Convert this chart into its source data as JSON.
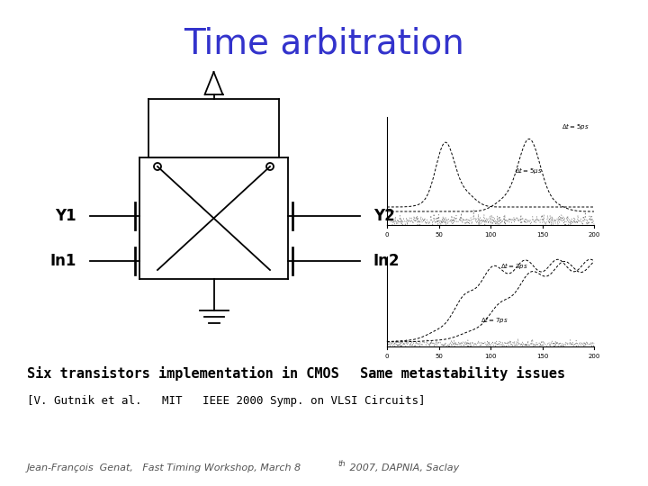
{
  "title": "Time arbitration",
  "title_color": "#3333cc",
  "title_fontsize": 28,
  "bg_color": "#ffffff",
  "label_y1": "Y1",
  "label_y2": "Y2",
  "label_in1": "In1",
  "label_in2": "In2",
  "text_six_transistors": "Six transistors implementation in CMOS",
  "text_same_meta": "Same metastability issues",
  "text_reference": "[V. Gutnik et al.   MIT   IEEE 2000 Symp. on VLSI Circuits]",
  "text_footer": "Jean-François  Genat,   Fast Timing Workshop, March 8",
  "text_footer_super": "th",
  "text_footer_end": " 2007, DAPNIA, Saclay"
}
